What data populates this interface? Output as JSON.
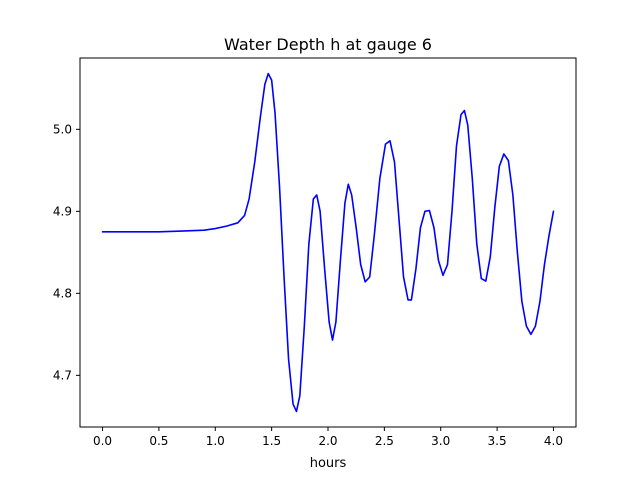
{
  "chart_data": {
    "type": "line",
    "title": "Water Depth h at gauge 6",
    "xlabel": "hours",
    "ylabel": "",
    "xlim": [
      -0.2,
      4.2
    ],
    "ylim": [
      4.637,
      5.087
    ],
    "xticks": [
      0.0,
      0.5,
      1.0,
      1.5,
      2.0,
      2.5,
      3.0,
      3.5,
      4.0
    ],
    "xtick_labels": [
      "0.0",
      "0.5",
      "1.0",
      "1.5",
      "2.0",
      "2.5",
      "3.0",
      "3.5",
      "4.0"
    ],
    "yticks": [
      4.7,
      4.8,
      4.9,
      5.0
    ],
    "ytick_labels": [
      "4.7",
      "4.8",
      "4.9",
      "5.0"
    ],
    "grid": false,
    "series": [
      {
        "color": "#0000ff",
        "points": [
          [
            0.0,
            4.875
          ],
          [
            0.5,
            4.875
          ],
          [
            0.7,
            4.876
          ],
          [
            0.9,
            4.877
          ],
          [
            1.0,
            4.879
          ],
          [
            1.1,
            4.882
          ],
          [
            1.2,
            4.886
          ],
          [
            1.26,
            4.895
          ],
          [
            1.3,
            4.915
          ],
          [
            1.35,
            4.96
          ],
          [
            1.4,
            5.015
          ],
          [
            1.44,
            5.055
          ],
          [
            1.47,
            5.068
          ],
          [
            1.5,
            5.06
          ],
          [
            1.53,
            5.02
          ],
          [
            1.57,
            4.93
          ],
          [
            1.61,
            4.82
          ],
          [
            1.65,
            4.72
          ],
          [
            1.69,
            4.665
          ],
          [
            1.72,
            4.656
          ],
          [
            1.75,
            4.675
          ],
          [
            1.79,
            4.76
          ],
          [
            1.83,
            4.86
          ],
          [
            1.87,
            4.915
          ],
          [
            1.9,
            4.92
          ],
          [
            1.93,
            4.9
          ],
          [
            1.97,
            4.83
          ],
          [
            2.01,
            4.765
          ],
          [
            2.04,
            4.743
          ],
          [
            2.07,
            4.765
          ],
          [
            2.11,
            4.84
          ],
          [
            2.15,
            4.91
          ],
          [
            2.18,
            4.933
          ],
          [
            2.21,
            4.92
          ],
          [
            2.25,
            4.88
          ],
          [
            2.29,
            4.835
          ],
          [
            2.33,
            4.814
          ],
          [
            2.37,
            4.82
          ],
          [
            2.41,
            4.87
          ],
          [
            2.46,
            4.94
          ],
          [
            2.51,
            4.982
          ],
          [
            2.55,
            4.986
          ],
          [
            2.59,
            4.96
          ],
          [
            2.63,
            4.89
          ],
          [
            2.67,
            4.82
          ],
          [
            2.71,
            4.792
          ],
          [
            2.74,
            4.792
          ],
          [
            2.78,
            4.83
          ],
          [
            2.82,
            4.88
          ],
          [
            2.86,
            4.9
          ],
          [
            2.9,
            4.901
          ],
          [
            2.94,
            4.88
          ],
          [
            2.98,
            4.84
          ],
          [
            3.02,
            4.822
          ],
          [
            3.06,
            4.835
          ],
          [
            3.1,
            4.9
          ],
          [
            3.14,
            4.98
          ],
          [
            3.18,
            5.018
          ],
          [
            3.21,
            5.023
          ],
          [
            3.24,
            5.005
          ],
          [
            3.28,
            4.94
          ],
          [
            3.32,
            4.86
          ],
          [
            3.36,
            4.818
          ],
          [
            3.4,
            4.815
          ],
          [
            3.44,
            4.845
          ],
          [
            3.48,
            4.905
          ],
          [
            3.52,
            4.955
          ],
          [
            3.56,
            4.97
          ],
          [
            3.6,
            4.962
          ],
          [
            3.64,
            4.92
          ],
          [
            3.68,
            4.85
          ],
          [
            3.72,
            4.79
          ],
          [
            3.76,
            4.76
          ],
          [
            3.8,
            4.75
          ],
          [
            3.84,
            4.76
          ],
          [
            3.88,
            4.79
          ],
          [
            3.92,
            4.835
          ],
          [
            3.96,
            4.87
          ],
          [
            4.0,
            4.9
          ]
        ]
      }
    ]
  }
}
